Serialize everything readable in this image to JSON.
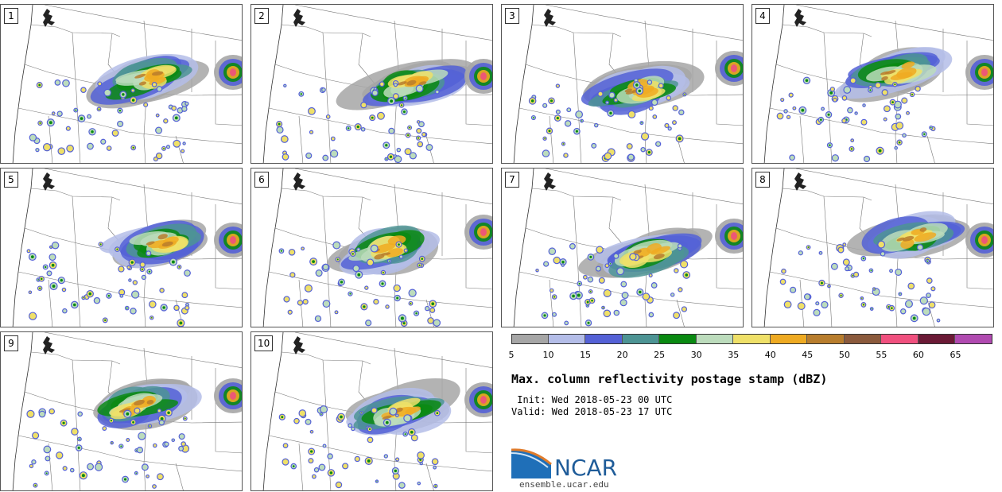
{
  "panels": [
    {
      "label": "1"
    },
    {
      "label": "2"
    },
    {
      "label": "3"
    },
    {
      "label": "4"
    },
    {
      "label": "5"
    },
    {
      "label": "6"
    },
    {
      "label": "7"
    },
    {
      "label": "8"
    },
    {
      "label": "9"
    },
    {
      "label": "10"
    }
  ],
  "colorbar": {
    "ticks": [
      "5",
      "10",
      "15",
      "20",
      "25",
      "30",
      "35",
      "40",
      "45",
      "50",
      "55",
      "60",
      "65"
    ],
    "colors": [
      "#a6a6a6",
      "#b4bde8",
      "#5461d6",
      "#4d9494",
      "#0a8a12",
      "#bcdcbc",
      "#efe068",
      "#eeaa22",
      "#b87d2d",
      "#8b5a3c",
      "#f0507e",
      "#6b1a36",
      "#b04ab0"
    ]
  },
  "title": "Max. column reflectivity postage stamp (dBZ)",
  "init_line": " Init: Wed 2018-05-23 00 UTC",
  "valid_line": "Valid: Wed 2018-05-23 17 UTC",
  "logo": {
    "wordmark": "NCAR",
    "url": "ensemble.ucar.edu",
    "blue": "#1f5c99",
    "swoosh": "#e07b2a"
  }
}
